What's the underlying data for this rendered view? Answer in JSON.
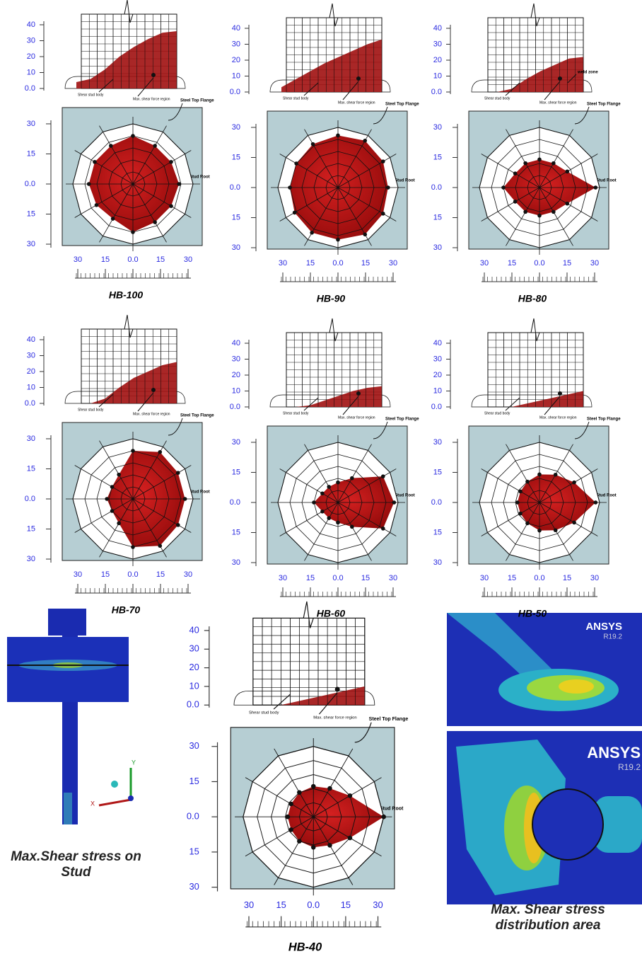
{
  "figure": {
    "profile_axis": {
      "lim": [
        0,
        40
      ],
      "ticks": [
        40,
        30,
        20,
        10,
        {
          "value": 0,
          "label": "0.0"
        }
      ]
    },
    "radar_axis": {
      "lim": 30,
      "vticks": [
        30,
        15,
        {
          "value": 0,
          "label": "0.0"
        },
        {
          "value": -15,
          "label": "15"
        },
        {
          "value": -30,
          "label": "30"
        }
      ],
      "hticks": [
        {
          "value": -30,
          "label": "30"
        },
        {
          "value": -15,
          "label": "15"
        },
        {
          "value": 0,
          "label": "0.0"
        },
        15,
        30
      ]
    },
    "annotations": {
      "flange": "Steel Top Flange",
      "root": "Stud Root",
      "body": "Shear stud body",
      "region": "Max. shear force region"
    },
    "panels": [
      {
        "label": "HB-100",
        "profile": [
          4,
          6,
          12,
          20,
          26,
          31,
          35,
          36
        ],
        "radar": [
          23,
          22,
          22,
          24,
          22,
          22,
          22,
          21,
          20,
          24,
          22,
          22
        ]
      },
      {
        "label": "HB-90",
        "profile": [
          3,
          8,
          13,
          18,
          22,
          26,
          30,
          33
        ],
        "radar": [
          25,
          26,
          27,
          26,
          25,
          24,
          24,
          25,
          26,
          26,
          27,
          26
        ]
      },
      {
        "label": "HB-80",
        "profile": [
          0,
          0,
          2,
          8,
          13,
          17,
          21,
          22
        ],
        "radar": [
          28,
          16,
          14,
          14,
          14,
          14,
          18,
          14,
          14,
          14,
          14,
          16
        ],
        "note": "weld zone"
      },
      {
        "label": "HB-70",
        "profile": [
          0,
          0,
          3,
          10,
          16,
          20,
          24,
          26
        ],
        "radar": [
          26,
          26,
          27,
          24,
          14,
          12,
          13,
          12,
          14,
          24,
          27,
          26
        ]
      },
      {
        "label": "HB-60",
        "profile": [
          0,
          0,
          1,
          4,
          7,
          10,
          12,
          13
        ],
        "radar": [
          28,
          26,
          14,
          10,
          9,
          9,
          12,
          9,
          9,
          10,
          14,
          26
        ]
      },
      {
        "label": "HB-50",
        "profile": [
          0,
          0,
          0,
          2,
          4,
          6,
          8,
          10
        ],
        "radar": [
          28,
          20,
          16,
          14,
          12,
          11,
          11,
          11,
          12,
          14,
          16,
          20
        ]
      },
      {
        "label": "HB-40",
        "profile": [
          0,
          0,
          0,
          2,
          4,
          6,
          8,
          10
        ],
        "radar": [
          30,
          18,
          14,
          13,
          12,
          11,
          11,
          11,
          12,
          13,
          14,
          18
        ]
      }
    ],
    "stud_caption": "Max.Shear stress on Stud",
    "triad": [
      "Y",
      "X"
    ],
    "ansys": {
      "name": "ANSYS",
      "version": "R19.2"
    },
    "area_caption": "Max. Shear stress distribution area"
  }
}
